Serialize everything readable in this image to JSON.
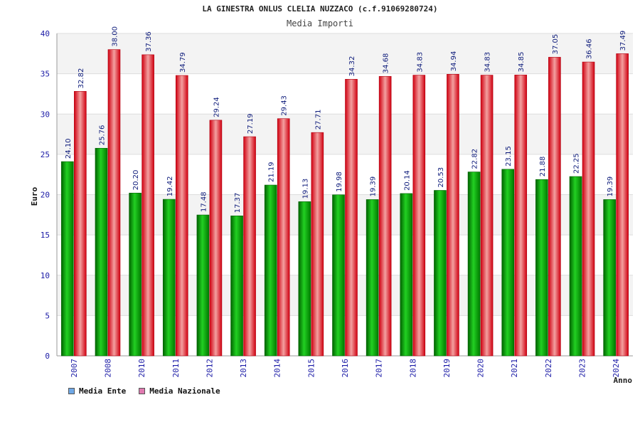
{
  "header": {
    "title": "LA GINESTRA ONLUS CLELIA NUZZACO (c.f.91069280724)",
    "subtitle": "Media Importi"
  },
  "legend": {
    "items": [
      {
        "label": "Media Ente",
        "color": "#6fa8e6"
      },
      {
        "label": "Media Nazionale",
        "color": "#e07ab0"
      }
    ]
  },
  "chart_data": {
    "type": "bar",
    "title": "Media Importi",
    "xlabel": "Anno",
    "ylabel": "Euro",
    "ylim": [
      0,
      40
    ],
    "yticks": [
      0,
      5,
      10,
      15,
      20,
      25,
      30,
      35,
      40
    ],
    "categories": [
      "2007",
      "2008",
      "2010",
      "2011",
      "2012",
      "2013",
      "2014",
      "2015",
      "2016",
      "2017",
      "2018",
      "2019",
      "2020",
      "2021",
      "2022",
      "2023",
      "2024"
    ],
    "series": [
      {
        "name": "Media Ente",
        "color": "#00a000",
        "values": [
          24.1,
          25.76,
          20.2,
          19.42,
          17.48,
          17.37,
          21.19,
          19.13,
          19.98,
          19.39,
          20.14,
          20.53,
          22.82,
          23.15,
          21.88,
          22.25,
          19.39
        ],
        "labels": [
          "24.10",
          "25.76",
          "20.20",
          "19.42",
          "17.48",
          "17.37",
          "21.19",
          "19.13",
          "19.98",
          "19.39",
          "20.14",
          "20.53",
          "22.82",
          "23.15",
          "21.88",
          "22.25",
          "19.39"
        ]
      },
      {
        "name": "Media Nazionale",
        "color": "#e00010",
        "values": [
          32.82,
          38.0,
          37.36,
          34.79,
          29.24,
          27.19,
          29.43,
          27.71,
          34.32,
          34.68,
          34.83,
          34.94,
          34.83,
          34.85,
          37.05,
          36.46,
          37.49
        ],
        "labels": [
          "32.82",
          "38.00",
          "37.36",
          "34.79",
          "29.24",
          "27.19",
          "29.43",
          "27.71",
          "34.32",
          "34.68",
          "34.83",
          "34.94",
          "34.83",
          "34.85",
          "37.05",
          "36.46",
          "37.49"
        ]
      }
    ]
  }
}
